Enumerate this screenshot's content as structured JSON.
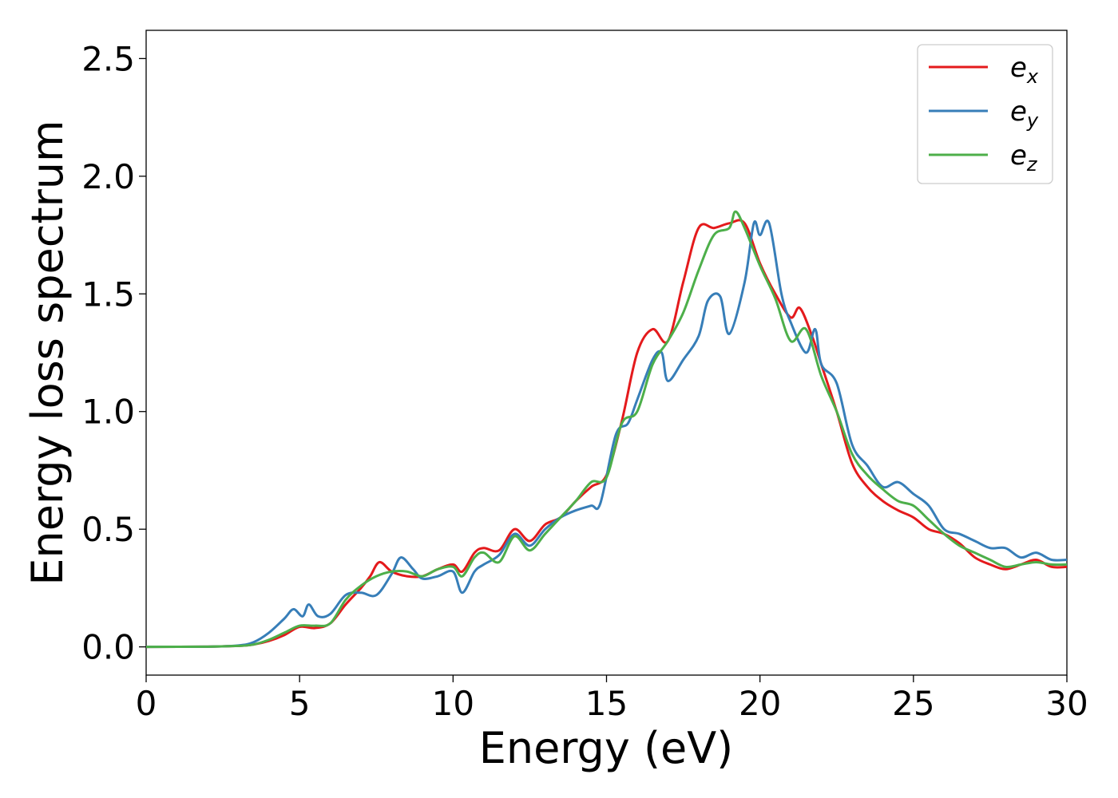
{
  "chart_data": {
    "type": "line",
    "title": "",
    "xlabel": "Energy (eV)",
    "ylabel": "Energy loss spectrum",
    "xlim": [
      0,
      30
    ],
    "ylim": [
      -0.12,
      2.62
    ],
    "xticks": [
      "0",
      "5",
      "10",
      "15",
      "20",
      "25",
      "30"
    ],
    "xtick_values": [
      0,
      5,
      10,
      15,
      20,
      25,
      30
    ],
    "yticks": [
      "0.0",
      "0.5",
      "1.0",
      "1.5",
      "2.0",
      "2.5"
    ],
    "ytick_values": [
      0.0,
      0.5,
      1.0,
      1.5,
      2.0,
      2.5
    ],
    "grid": false,
    "legend_position": "top-right",
    "series": [
      {
        "name": "e_x",
        "legend_base": "e",
        "legend_sub": "x",
        "color": "#e41a1c",
        "points": [
          [
            0,
            0
          ],
          [
            2,
            0.001
          ],
          [
            3,
            0.004
          ],
          [
            3.5,
            0.01
          ],
          [
            4,
            0.025
          ],
          [
            4.5,
            0.05
          ],
          [
            5,
            0.085
          ],
          [
            5.5,
            0.08
          ],
          [
            6,
            0.1
          ],
          [
            6.5,
            0.18
          ],
          [
            7,
            0.25
          ],
          [
            7.3,
            0.3
          ],
          [
            7.6,
            0.36
          ],
          [
            8,
            0.32
          ],
          [
            8.5,
            0.3
          ],
          [
            9,
            0.3
          ],
          [
            9.5,
            0.33
          ],
          [
            10,
            0.35
          ],
          [
            10.3,
            0.32
          ],
          [
            10.7,
            0.4
          ],
          [
            11,
            0.42
          ],
          [
            11.5,
            0.41
          ],
          [
            12,
            0.5
          ],
          [
            12.5,
            0.45
          ],
          [
            13,
            0.52
          ],
          [
            13.5,
            0.55
          ],
          [
            14,
            0.62
          ],
          [
            14.5,
            0.68
          ],
          [
            15,
            0.73
          ],
          [
            15.5,
            0.96
          ],
          [
            16,
            1.25
          ],
          [
            16.5,
            1.35
          ],
          [
            17,
            1.3
          ],
          [
            17.5,
            1.55
          ],
          [
            18,
            1.78
          ],
          [
            18.5,
            1.78
          ],
          [
            19,
            1.8
          ],
          [
            19.5,
            1.8
          ],
          [
            20,
            1.63
          ],
          [
            20.5,
            1.5
          ],
          [
            21,
            1.4
          ],
          [
            21.3,
            1.44
          ],
          [
            21.7,
            1.32
          ],
          [
            22,
            1.2
          ],
          [
            22.5,
            1.0
          ],
          [
            23,
            0.78
          ],
          [
            23.5,
            0.68
          ],
          [
            24,
            0.62
          ],
          [
            24.5,
            0.58
          ],
          [
            25,
            0.55
          ],
          [
            25.5,
            0.5
          ],
          [
            26,
            0.48
          ],
          [
            26.5,
            0.44
          ],
          [
            27,
            0.38
          ],
          [
            27.5,
            0.35
          ],
          [
            28,
            0.33
          ],
          [
            28.5,
            0.35
          ],
          [
            29,
            0.37
          ],
          [
            29.5,
            0.34
          ],
          [
            30,
            0.34
          ]
        ]
      },
      {
        "name": "e_y",
        "legend_base": "e",
        "legend_sub": "y",
        "color": "#377eb8",
        "points": [
          [
            0,
            0
          ],
          [
            2,
            0.001
          ],
          [
            3,
            0.006
          ],
          [
            3.5,
            0.02
          ],
          [
            4,
            0.06
          ],
          [
            4.5,
            0.12
          ],
          [
            4.8,
            0.16
          ],
          [
            5.1,
            0.13
          ],
          [
            5.3,
            0.18
          ],
          [
            5.6,
            0.13
          ],
          [
            6,
            0.14
          ],
          [
            6.5,
            0.22
          ],
          [
            7,
            0.23
          ],
          [
            7.5,
            0.22
          ],
          [
            8,
            0.31
          ],
          [
            8.3,
            0.38
          ],
          [
            8.7,
            0.33
          ],
          [
            9,
            0.29
          ],
          [
            9.5,
            0.3
          ],
          [
            10,
            0.32
          ],
          [
            10.3,
            0.23
          ],
          [
            10.7,
            0.32
          ],
          [
            11,
            0.35
          ],
          [
            11.5,
            0.39
          ],
          [
            12,
            0.48
          ],
          [
            12.5,
            0.43
          ],
          [
            13,
            0.5
          ],
          [
            13.5,
            0.55
          ],
          [
            14,
            0.58
          ],
          [
            14.5,
            0.6
          ],
          [
            14.8,
            0.61
          ],
          [
            15.3,
            0.9
          ],
          [
            15.7,
            0.95
          ],
          [
            16,
            1.05
          ],
          [
            16.5,
            1.22
          ],
          [
            16.8,
            1.25
          ],
          [
            17,
            1.13
          ],
          [
            17.5,
            1.22
          ],
          [
            18,
            1.32
          ],
          [
            18.3,
            1.47
          ],
          [
            18.7,
            1.49
          ],
          [
            19,
            1.33
          ],
          [
            19.5,
            1.55
          ],
          [
            19.8,
            1.8
          ],
          [
            20,
            1.75
          ],
          [
            20.3,
            1.8
          ],
          [
            20.7,
            1.5
          ],
          [
            21,
            1.38
          ],
          [
            21.5,
            1.25
          ],
          [
            21.8,
            1.35
          ],
          [
            22,
            1.2
          ],
          [
            22.5,
            1.12
          ],
          [
            23,
            0.86
          ],
          [
            23.5,
            0.77
          ],
          [
            24,
            0.68
          ],
          [
            24.5,
            0.7
          ],
          [
            25,
            0.65
          ],
          [
            25.5,
            0.6
          ],
          [
            26,
            0.5
          ],
          [
            26.5,
            0.48
          ],
          [
            27,
            0.45
          ],
          [
            27.5,
            0.42
          ],
          [
            28,
            0.42
          ],
          [
            28.5,
            0.38
          ],
          [
            29,
            0.4
          ],
          [
            29.5,
            0.37
          ],
          [
            30,
            0.37
          ]
        ]
      },
      {
        "name": "e_z",
        "legend_base": "e",
        "legend_sub": "z",
        "color": "#4daf4a",
        "points": [
          [
            0,
            0
          ],
          [
            2,
            0.001
          ],
          [
            3,
            0.004
          ],
          [
            3.5,
            0.01
          ],
          [
            4,
            0.03
          ],
          [
            4.5,
            0.06
          ],
          [
            5,
            0.09
          ],
          [
            5.5,
            0.09
          ],
          [
            6,
            0.1
          ],
          [
            6.5,
            0.2
          ],
          [
            7,
            0.26
          ],
          [
            7.5,
            0.3
          ],
          [
            8,
            0.32
          ],
          [
            8.5,
            0.32
          ],
          [
            9,
            0.3
          ],
          [
            9.5,
            0.33
          ],
          [
            10,
            0.34
          ],
          [
            10.3,
            0.3
          ],
          [
            10.7,
            0.38
          ],
          [
            11,
            0.4
          ],
          [
            11.5,
            0.36
          ],
          [
            12,
            0.47
          ],
          [
            12.5,
            0.41
          ],
          [
            13,
            0.48
          ],
          [
            13.5,
            0.55
          ],
          [
            14,
            0.62
          ],
          [
            14.5,
            0.7
          ],
          [
            15,
            0.72
          ],
          [
            15.5,
            0.95
          ],
          [
            16,
            1.0
          ],
          [
            16.5,
            1.2
          ],
          [
            17,
            1.3
          ],
          [
            17.5,
            1.42
          ],
          [
            18,
            1.6
          ],
          [
            18.5,
            1.75
          ],
          [
            19,
            1.78
          ],
          [
            19.2,
            1.85
          ],
          [
            19.5,
            1.78
          ],
          [
            20,
            1.62
          ],
          [
            20.5,
            1.48
          ],
          [
            21,
            1.3
          ],
          [
            21.5,
            1.35
          ],
          [
            22,
            1.15
          ],
          [
            22.5,
            1.0
          ],
          [
            23,
            0.82
          ],
          [
            23.5,
            0.73
          ],
          [
            24,
            0.67
          ],
          [
            24.5,
            0.62
          ],
          [
            25,
            0.6
          ],
          [
            25.5,
            0.54
          ],
          [
            26,
            0.48
          ],
          [
            26.5,
            0.43
          ],
          [
            27,
            0.4
          ],
          [
            27.5,
            0.37
          ],
          [
            28,
            0.34
          ],
          [
            28.5,
            0.35
          ],
          [
            29,
            0.36
          ],
          [
            29.5,
            0.35
          ],
          [
            30,
            0.35
          ]
        ]
      }
    ]
  }
}
